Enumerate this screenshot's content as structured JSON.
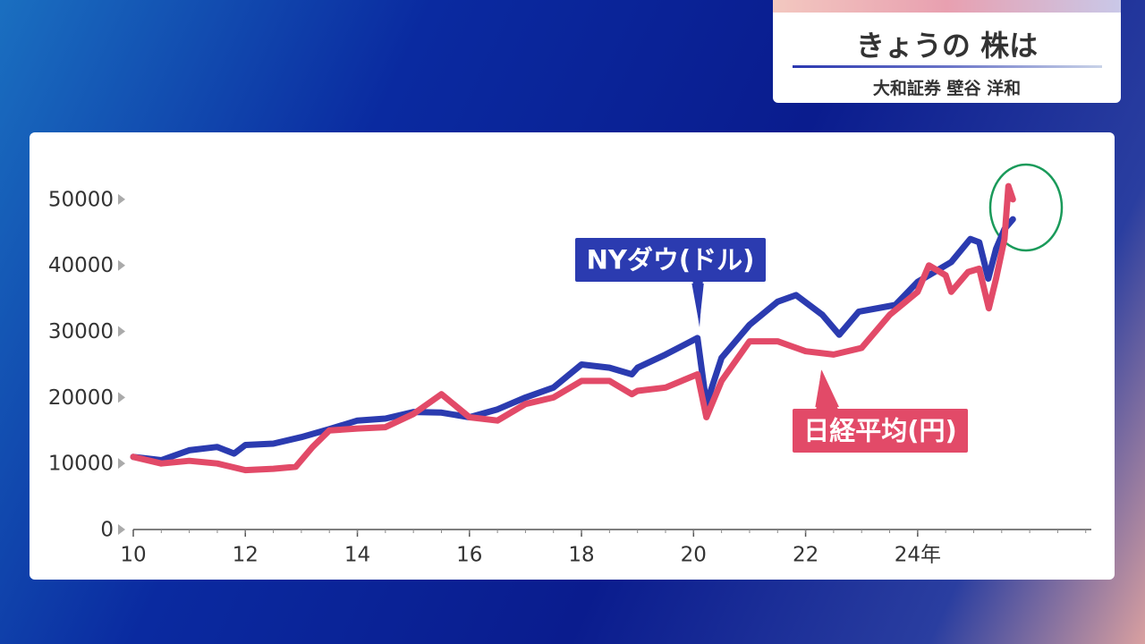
{
  "header": {
    "title": "きょうの 株は",
    "subtitle": "大和証券 壁谷 洋和"
  },
  "chart_data": {
    "type": "line",
    "xlim": [
      10,
      27.1
    ],
    "xticks": [
      10,
      12,
      14,
      16,
      18,
      20,
      22,
      {
        "value": 24,
        "label": "24年"
      }
    ],
    "ylim": [
      0,
      55000
    ],
    "yticks": [
      0,
      10000,
      20000,
      30000,
      40000,
      50000
    ],
    "series": [
      {
        "name": "NYダウ(ドル)",
        "color": "#2b3bb0",
        "x": [
          10.0,
          10.5,
          11.0,
          11.5,
          11.8,
          12.0,
          12.5,
          13.0,
          13.5,
          14.0,
          14.5,
          15.0,
          15.5,
          16.0,
          16.5,
          17.0,
          17.5,
          18.0,
          18.5,
          18.9,
          19.0,
          19.5,
          20.07,
          20.23,
          20.5,
          21.0,
          21.5,
          21.83,
          22.3,
          22.6,
          22.95,
          23.6,
          24.0,
          24.3,
          24.6,
          24.94,
          25.1,
          25.26,
          25.4,
          25.55,
          25.7
        ],
        "values": [
          11000,
          10500,
          12000,
          12500,
          11500,
          12800,
          13000,
          14000,
          15200,
          16500,
          16800,
          17800,
          17700,
          17000,
          18200,
          20000,
          21500,
          25000,
          24500,
          23500,
          24500,
          26500,
          29000,
          19000,
          26000,
          31000,
          34500,
          35500,
          32500,
          29500,
          33000,
          34000,
          37500,
          39000,
          40500,
          44000,
          43500,
          38000,
          42500,
          45500,
          47000
        ]
      },
      {
        "name": "日経平均(円)",
        "color": "#e24a68",
        "x": [
          10.0,
          10.5,
          11.0,
          11.5,
          12.0,
          12.5,
          12.9,
          13.2,
          13.5,
          14.0,
          14.5,
          15.0,
          15.5,
          16.0,
          16.5,
          17.0,
          17.5,
          18.0,
          18.5,
          18.9,
          19.0,
          19.5,
          20.07,
          20.23,
          20.5,
          21.0,
          21.5,
          22.0,
          22.5,
          23.0,
          23.5,
          24.0,
          24.2,
          24.5,
          24.6,
          24.9,
          25.1,
          25.27,
          25.4,
          25.55,
          25.62,
          25.7
        ],
        "values": [
          11000,
          10000,
          10400,
          10000,
          9000,
          9200,
          9500,
          12500,
          15000,
          15300,
          15500,
          17500,
          20500,
          17000,
          16500,
          19000,
          20000,
          22500,
          22500,
          20500,
          21000,
          21500,
          23500,
          17000,
          22500,
          28500,
          28500,
          27000,
          26500,
          27500,
          32500,
          36000,
          40000,
          38500,
          36000,
          39000,
          39500,
          33500,
          38000,
          44000,
          52000,
          50000
        ]
      }
    ]
  }
}
